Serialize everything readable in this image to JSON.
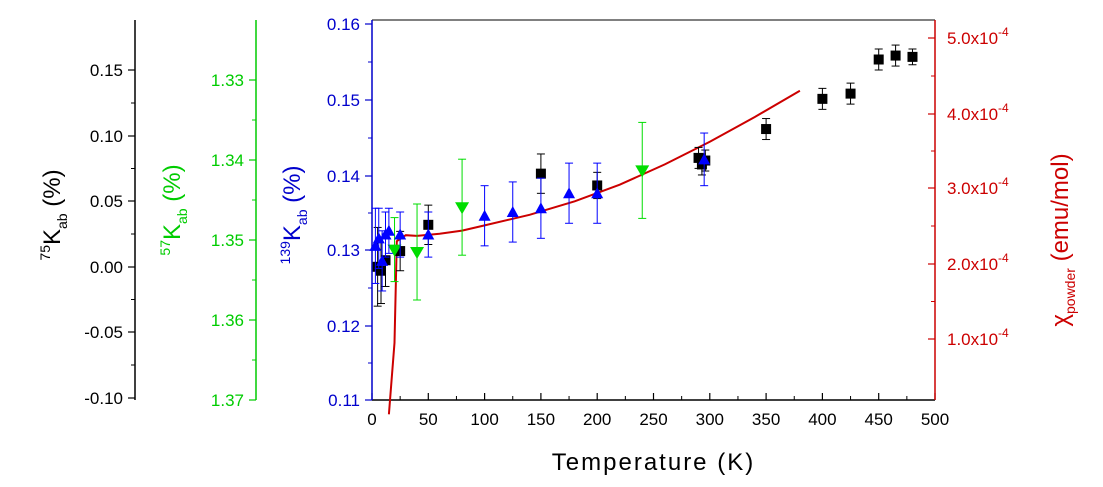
{
  "chart_data": {
    "type": "scatter",
    "xlabel": "Temperature (K)",
    "xlim": [
      0,
      500
    ],
    "x_ticks": [
      "0",
      "50",
      "100",
      "150",
      "200",
      "250",
      "300",
      "350",
      "400",
      "450",
      "500"
    ],
    "axes": {
      "k75": {
        "label_sup": "75",
        "label_main": "K",
        "label_sub": "ab",
        "label_unit": " (%)",
        "color": "#000000",
        "range": [
          -0.1,
          0.175
        ],
        "ticks": [
          "0.15",
          "0.10",
          "0.05",
          "0.00",
          "-0.05",
          "-0.10"
        ]
      },
      "k57": {
        "label_sup": "57",
        "label_main": "K",
        "label_sub": "ab",
        "label_unit": " (%)",
        "color": "#00cc00",
        "range": [
          1.37,
          1.325
        ],
        "ticks": [
          "1.33",
          "1.34",
          "1.35",
          "1.36",
          "1.37"
        ]
      },
      "k139": {
        "label_sup": "139",
        "label_main": "K",
        "label_sub": "ab",
        "label_unit": " (%)",
        "color": "#0000cc",
        "range": [
          0.11,
          0.16
        ],
        "ticks": [
          "0.16",
          "0.15",
          "0.14",
          "0.13",
          "0.12",
          "0.11"
        ]
      },
      "chi": {
        "label_main": "χ",
        "label_sub": "powder",
        "label_unit": " (emu/mol)",
        "color": "#cc0000",
        "range": [
          0.0,
          0.00052
        ],
        "ticks": [
          "5.0x10",
          "4.0x10",
          "3.0x10",
          "2.0x10",
          "1.0x10"
        ],
        "tick_exp": "-4"
      }
    },
    "series": [
      {
        "axis": "k75",
        "marker": "square",
        "color": "#000000",
        "points": [
          {
            "x": 5,
            "y": 0.0,
            "err": 0.03
          },
          {
            "x": 8,
            "y": -0.003,
            "err": 0.025
          },
          {
            "x": 12,
            "y": 0.005,
            "err": 0.02
          },
          {
            "x": 25,
            "y": 0.012,
            "err": 0.015
          },
          {
            "x": 50,
            "y": 0.032,
            "err": 0.015
          },
          {
            "x": 150,
            "y": 0.071,
            "err": 0.015
          },
          {
            "x": 200,
            "y": 0.062,
            "err": 0.01
          },
          {
            "x": 290,
            "y": 0.083,
            "err": 0.008
          },
          {
            "x": 293,
            "y": 0.078,
            "err": 0.008
          },
          {
            "x": 296,
            "y": 0.081,
            "err": 0.008
          },
          {
            "x": 350,
            "y": 0.105,
            "err": 0.008
          },
          {
            "x": 400,
            "y": 0.128,
            "err": 0.008
          },
          {
            "x": 425,
            "y": 0.132,
            "err": 0.008
          },
          {
            "x": 450,
            "y": 0.158,
            "err": 0.008
          },
          {
            "x": 465,
            "y": 0.161,
            "err": 0.008
          },
          {
            "x": 480,
            "y": 0.16,
            "err": 0.006
          }
        ]
      },
      {
        "axis": "k57",
        "marker": "triangle-down",
        "color": "#00dd00",
        "points": [
          {
            "x": 20,
            "y": 1.3512,
            "err": 0.004
          },
          {
            "x": 40,
            "y": 1.3515,
            "err": 0.006
          },
          {
            "x": 80,
            "y": 1.3459,
            "err": 0.006
          },
          {
            "x": 240,
            "y": 1.3413,
            "err": 0.006
          }
        ]
      },
      {
        "axis": "k139",
        "marker": "triangle-up",
        "color": "#0000ff",
        "points": [
          {
            "x": 3,
            "y": 0.1305,
            "err": 0.005
          },
          {
            "x": 6,
            "y": 0.1315,
            "err": 0.004
          },
          {
            "x": 9,
            "y": 0.1285,
            "err": 0.004
          },
          {
            "x": 12,
            "y": 0.132,
            "err": 0.003
          },
          {
            "x": 15,
            "y": 0.1325,
            "err": 0.003
          },
          {
            "x": 25,
            "y": 0.132,
            "err": 0.003
          },
          {
            "x": 50,
            "y": 0.132,
            "err": 0.003
          },
          {
            "x": 100,
            "y": 0.1345,
            "err": 0.004
          },
          {
            "x": 125,
            "y": 0.135,
            "err": 0.004
          },
          {
            "x": 150,
            "y": 0.1355,
            "err": 0.004
          },
          {
            "x": 175,
            "y": 0.1375,
            "err": 0.004
          },
          {
            "x": 200,
            "y": 0.1375,
            "err": 0.004
          },
          {
            "x": 295,
            "y": 0.142,
            "err": 0.0035
          }
        ]
      }
    ],
    "curve": {
      "axis": "chi",
      "color": "#cc0000",
      "points": [
        [
          15,
          0.0
        ],
        [
          20,
          9.5e-05
        ],
        [
          22,
          0.00023
        ],
        [
          30,
          0.000238
        ],
        [
          40,
          0.000237
        ],
        [
          60,
          0.00024
        ],
        [
          80,
          0.000244
        ],
        [
          100,
          0.000251
        ],
        [
          140,
          0.000265
        ],
        [
          180,
          0.000283
        ],
        [
          220,
          0.000305
        ],
        [
          260,
          0.000332
        ],
        [
          300,
          0.000362
        ],
        [
          340,
          0.000395
        ],
        [
          380,
          0.00043
        ]
      ]
    }
  }
}
